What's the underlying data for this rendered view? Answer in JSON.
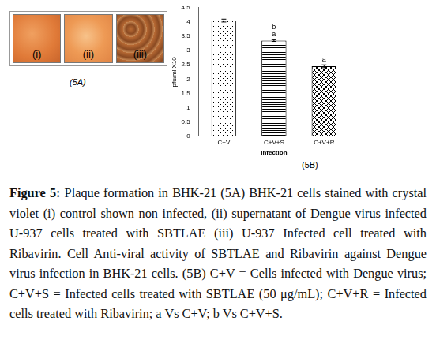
{
  "panel_a": {
    "images": [
      "(i)",
      "(ii)",
      "(iii)"
    ],
    "label": "(5A)"
  },
  "chart_data": {
    "type": "bar",
    "categories": [
      "C+V",
      "C+V+S",
      "C+V+R"
    ],
    "values": [
      4.05,
      3.35,
      2.45
    ],
    "errors": [
      0.05,
      0.03,
      0.05
    ],
    "color": "#000000",
    "x_label": "Infection",
    "y_label": "pfu/ml X10",
    "ylim": [
      0,
      4.5
    ],
    "yticks": [
      0,
      0.5,
      1,
      1.5,
      2,
      2.5,
      3,
      3.5,
      4,
      4.5
    ],
    "grid": false,
    "annotations": [
      {
        "category": "C+V+S",
        "texts": [
          "b",
          "a"
        ]
      },
      {
        "category": "C+V+R",
        "texts": [
          "a"
        ]
      }
    ],
    "panel_label": "(5B)"
  },
  "caption": {
    "label": "Figure 5:",
    "text": "Plaque formation in BHK-21 (5A) BHK-21 cells stained with crystal violet (i) control shown non infected, (ii) supernatant of Dengue virus infected U-937 cells treated with SBTLAE (iii) U-937 Infected cell treated with Ribavirin. Cell Anti-viral activity of SBTLAE and Ribavirin against Dengue virus infection in BHK-21 cells. (5B) C+V = Cells infected with Dengue virus; C+V+S = Infected cells treated with SBTLAE (50 μg/mL); C+V+R = Infected cells treated with Ribavirin; a Vs C+V; b Vs C+V+S."
  }
}
